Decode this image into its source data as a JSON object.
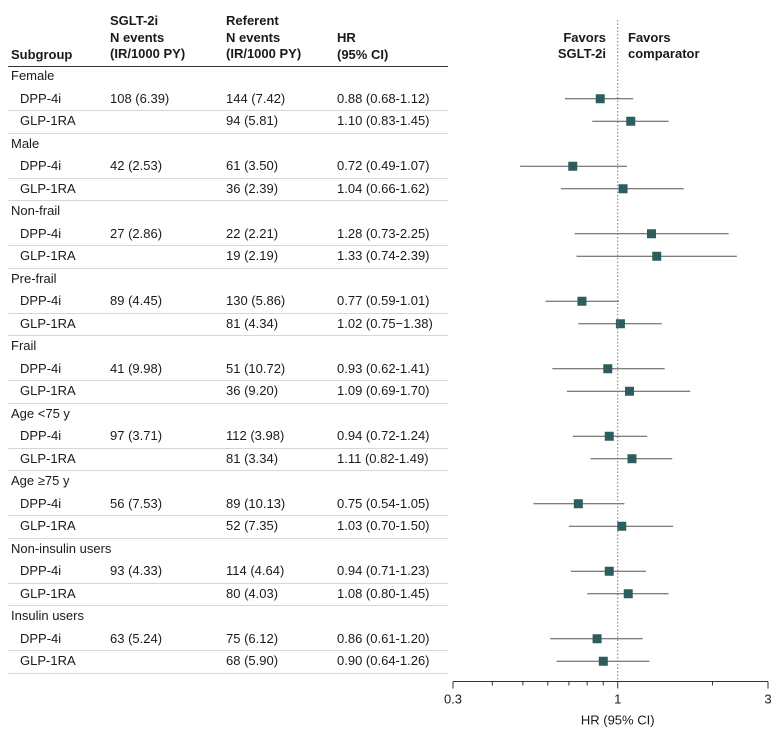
{
  "header": {
    "subgroup": "Subgroup",
    "sglt": "SGLT-2i\nN events\n(IR/1000 PY)",
    "referent": "Referent\nN events\n(IR/1000 PY)",
    "hr": "HR\n(95% CI)"
  },
  "favors": {
    "left": "Favors\nSGLT-2i",
    "right": "Favors\ncomparator"
  },
  "groups": [
    {
      "label": "Female",
      "rows": [
        {
          "label": "DPP-4i",
          "sglt": "108 (6.39)",
          "ref": "144 (7.42)",
          "hr_text": "0.88 (0.68-1.12)",
          "hr": 0.88,
          "lo": 0.68,
          "hi": 1.12
        },
        {
          "label": "GLP-1RA",
          "sglt": "",
          "ref": "94 (5.81)",
          "hr_text": "1.10 (0.83-1.45)",
          "hr": 1.1,
          "lo": 0.83,
          "hi": 1.45
        }
      ]
    },
    {
      "label": "Male",
      "rows": [
        {
          "label": "DPP-4i",
          "sglt": "42 (2.53)",
          "ref": "61 (3.50)",
          "hr_text": "0.72 (0.49-1.07)",
          "hr": 0.72,
          "lo": 0.49,
          "hi": 1.07
        },
        {
          "label": "GLP-1RA",
          "sglt": "",
          "ref": "36 (2.39)",
          "hr_text": "1.04 (0.66-1.62)",
          "hr": 1.04,
          "lo": 0.66,
          "hi": 1.62
        }
      ]
    },
    {
      "label": "Non-frail",
      "rows": [
        {
          "label": "DPP-4i",
          "sglt": "27 (2.86)",
          "ref": "22 (2.21)",
          "hr_text": "1.28 (0.73-2.25)",
          "hr": 1.28,
          "lo": 0.73,
          "hi": 2.25
        },
        {
          "label": "GLP-1RA",
          "sglt": "",
          "ref": "19 (2.19)",
          "hr_text": "1.33 (0.74-2.39)",
          "hr": 1.33,
          "lo": 0.74,
          "hi": 2.39
        }
      ]
    },
    {
      "label": "Pre-frail",
      "rows": [
        {
          "label": "DPP-4i",
          "sglt": "89 (4.45)",
          "ref": "130 (5.86)",
          "hr_text": "0.77 (0.59-1.01)",
          "hr": 0.77,
          "lo": 0.59,
          "hi": 1.01
        },
        {
          "label": "GLP-1RA",
          "sglt": "",
          "ref": "81 (4.34)",
          "hr_text": "1.02 (0.75−1.38)",
          "hr": 1.02,
          "lo": 0.75,
          "hi": 1.38
        }
      ]
    },
    {
      "label": "Frail",
      "rows": [
        {
          "label": "DPP-4i",
          "sglt": "41 (9.98)",
          "ref": "51 (10.72)",
          "hr_text": "0.93 (0.62-1.41)",
          "hr": 0.93,
          "lo": 0.62,
          "hi": 1.41
        },
        {
          "label": "GLP-1RA",
          "sglt": "",
          "ref": "36 (9.20)",
          "hr_text": "1.09 (0.69-1.70)",
          "hr": 1.09,
          "lo": 0.69,
          "hi": 1.7
        }
      ]
    },
    {
      "label": "Age <75 y",
      "rows": [
        {
          "label": "DPP-4i",
          "sglt": "97 (3.71)",
          "ref": "112 (3.98)",
          "hr_text": "0.94 (0.72-1.24)",
          "hr": 0.94,
          "lo": 0.72,
          "hi": 1.24
        },
        {
          "label": "GLP-1RA",
          "sglt": "",
          "ref": "81 (3.34)",
          "hr_text": "1.11 (0.82-1.49)",
          "hr": 1.11,
          "lo": 0.82,
          "hi": 1.49
        }
      ]
    },
    {
      "label": "Age ≥75 y",
      "rows": [
        {
          "label": "DPP-4i",
          "sglt": "56 (7.53)",
          "ref": "89 (10.13)",
          "hr_text": "0.75 (0.54-1.05)",
          "hr": 0.75,
          "lo": 0.54,
          "hi": 1.05
        },
        {
          "label": "GLP-1RA",
          "sglt": "",
          "ref": "52 (7.35)",
          "hr_text": "1.03 (0.70-1.50)",
          "hr": 1.03,
          "lo": 0.7,
          "hi": 1.5
        }
      ]
    },
    {
      "label": "Non-insulin users",
      "rows": [
        {
          "label": "DPP-4i",
          "sglt": "93 (4.33)",
          "ref": "114 (4.64)",
          "hr_text": "0.94 (0.71-1.23)",
          "hr": 0.94,
          "lo": 0.71,
          "hi": 1.23
        },
        {
          "label": "GLP-1RA",
          "sglt": "",
          "ref": "80 (4.03)",
          "hr_text": "1.08 (0.80-1.45)",
          "hr": 1.08,
          "lo": 0.8,
          "hi": 1.45
        }
      ]
    },
    {
      "label": "Insulin users",
      "rows": [
        {
          "label": "DPP-4i",
          "sglt": "63 (5.24)",
          "ref": "75 (6.12)",
          "hr_text": "0.86 (0.61-1.20)",
          "hr": 0.86,
          "lo": 0.61,
          "hi": 1.2
        },
        {
          "label": "GLP-1RA",
          "sglt": "",
          "ref": "68 (5.90)",
          "hr_text": "0.90 (0.64-1.26)",
          "hr": 0.9,
          "lo": 0.64,
          "hi": 1.26
        }
      ]
    }
  ],
  "chart_data": {
    "type": "forest",
    "xscale": "log",
    "xlim": [
      0.3,
      3
    ],
    "xticks": [
      0.3,
      1,
      3
    ],
    "xlabel": "HR (95% CI)",
    "reference_line": 1,
    "marker_color": "#2e5d5f",
    "line_color": "#555555"
  }
}
